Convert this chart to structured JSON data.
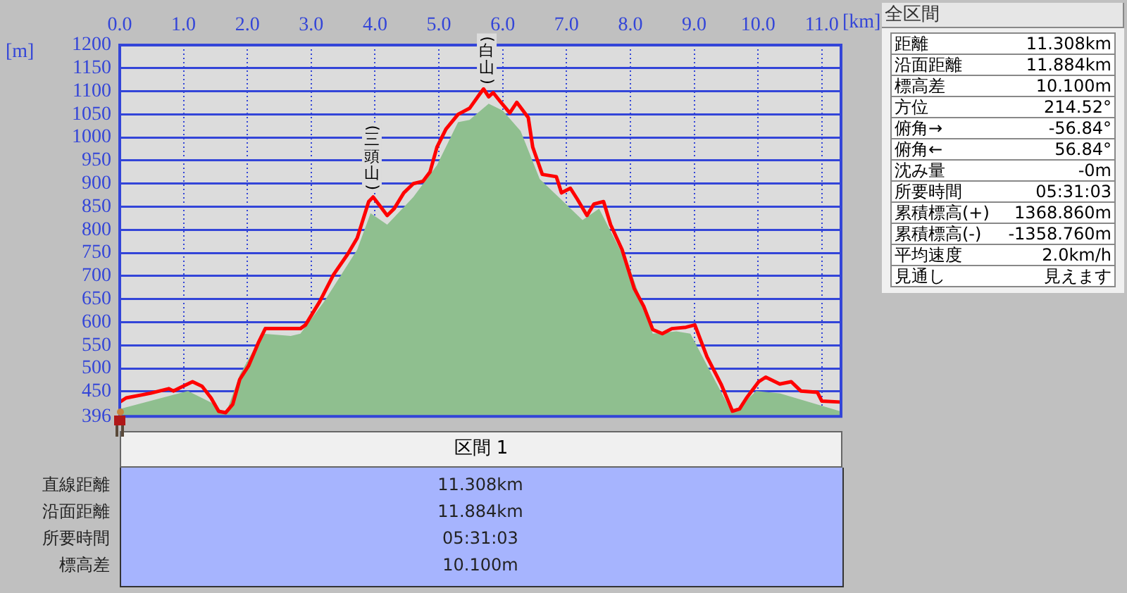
{
  "chart_data": [
    {
      "type": "line",
      "xlabel": "[km]",
      "ylabel": "[m]",
      "xlim": [
        0,
        11.3
      ],
      "ylim": [
        396,
        1200
      ],
      "xticks": [
        {
          "value": 0,
          "label": "0.0"
        },
        {
          "value": 1,
          "label": "1.0"
        },
        {
          "value": 2,
          "label": "2.0"
        },
        {
          "value": 3,
          "label": "3.0"
        },
        {
          "value": 4,
          "label": "4.0"
        },
        {
          "value": 5,
          "label": "5.0"
        },
        {
          "value": 6,
          "label": "6.0"
        },
        {
          "value": 7,
          "label": "7.0"
        },
        {
          "value": 8,
          "label": "8.0"
        },
        {
          "value": 9,
          "label": "9.0"
        },
        {
          "value": 10,
          "label": "10.0"
        },
        {
          "value": 11,
          "label": "11.0"
        }
      ],
      "yticks": [
        396,
        450,
        500,
        550,
        600,
        650,
        700,
        750,
        800,
        850,
        900,
        950,
        1000,
        1050,
        1100,
        1150,
        1200
      ],
      "grid": true,
      "legend": false,
      "series": [
        {
          "type": "area",
          "color": "#8fbf8f",
          "x": [
            0,
            1.07,
            1.43,
            1.66,
            1.88,
            2.24,
            2.68,
            2.83,
            3.2,
            3.72,
            3.93,
            4.19,
            4.6,
            4.97,
            5.3,
            5.48,
            5.78,
            6.0,
            6.28,
            6.58,
            6.95,
            7.25,
            7.51,
            8.0,
            8.35,
            8.72,
            8.94,
            9.6,
            9.97,
            10.34,
            11.29
          ],
          "values": [
            412,
            451,
            426,
            401,
            486,
            575,
            570,
            575,
            644,
            757,
            836,
            811,
            871,
            940,
            1033,
            1038,
            1073,
            1058,
            1014,
            910,
            861,
            821,
            846,
            713,
            575,
            580,
            575,
            402,
            451,
            446,
            407
          ]
        },
        {
          "type": "line",
          "color": "#ff0000",
          "x": [
            0,
            0.1,
            0.48,
            0.77,
            0.84,
            1.14,
            1.29,
            1.43,
            1.55,
            1.66,
            1.77,
            1.88,
            2.02,
            2.17,
            2.28,
            2.54,
            2.83,
            2.91,
            3.13,
            3.35,
            3.57,
            3.72,
            3.9,
            3.97,
            4.08,
            4.19,
            4.3,
            4.45,
            4.6,
            4.75,
            4.86,
            4.97,
            5.11,
            5.3,
            5.48,
            5.63,
            5.7,
            5.78,
            5.85,
            5.96,
            6.11,
            6.22,
            6.4,
            6.47,
            6.62,
            6.84,
            6.92,
            7.06,
            7.17,
            7.32,
            7.43,
            7.58,
            7.69,
            7.87,
            8.06,
            8.21,
            8.35,
            8.5,
            8.65,
            8.87,
            9.01,
            9.2,
            9.42,
            9.6,
            9.71,
            9.82,
            10.01,
            10.12,
            10.34,
            10.52,
            10.67,
            10.93,
            11.0,
            11.29
          ],
          "values": [
            427,
            436,
            446,
            456,
            451,
            471,
            461,
            436,
            407,
            404,
            422,
            476,
            506,
            555,
            586,
            586,
            586,
            594,
            644,
            703,
            747,
            782,
            861,
            871,
            851,
            831,
            846,
            880,
            900,
            905,
            925,
            979,
            1018,
            1050,
            1063,
            1092,
            1105,
            1088,
            1097,
            1078,
            1053,
            1076,
            1043,
            979,
            920,
            915,
            880,
            890,
            866,
            831,
            856,
            861,
            811,
            757,
            673,
            634,
            584,
            575,
            586,
            589,
            594,
            525,
            466,
            407,
            412,
            436,
            471,
            481,
            466,
            471,
            451,
            448,
            429,
            427
          ]
        }
      ],
      "annotations": [
        {
          "text": "(三頭山)",
          "x": 3.95,
          "y": 871
        },
        {
          "text": "(白山)",
          "x": 5.75,
          "y": 1100
        }
      ]
    },
    {
      "type": "other",
      "title": "全区間",
      "annotations": [
        "距離",
        "11.308km",
        "沿面距離",
        "11.884km",
        "標高差",
        "10.100m",
        "方位",
        "214.52°",
        "俯角→",
        "-56.84°",
        "俯角←",
        "56.84°",
        "沈み量",
        "-0m",
        "所要時間",
        "05:31:03",
        "累積標高(+)",
        "1368.860m",
        "累積標高(-)",
        "-1358.760m",
        "平均速度",
        "2.0km/h",
        "見通し",
        "見えます"
      ]
    },
    {
      "type": "other",
      "title": "区間 1",
      "annotations": [
        "直線距離",
        "11.308km",
        "沿面距離",
        "11.884km",
        "所要時間",
        "05:31:03",
        "標高差",
        "10.100m"
      ]
    }
  ]
}
